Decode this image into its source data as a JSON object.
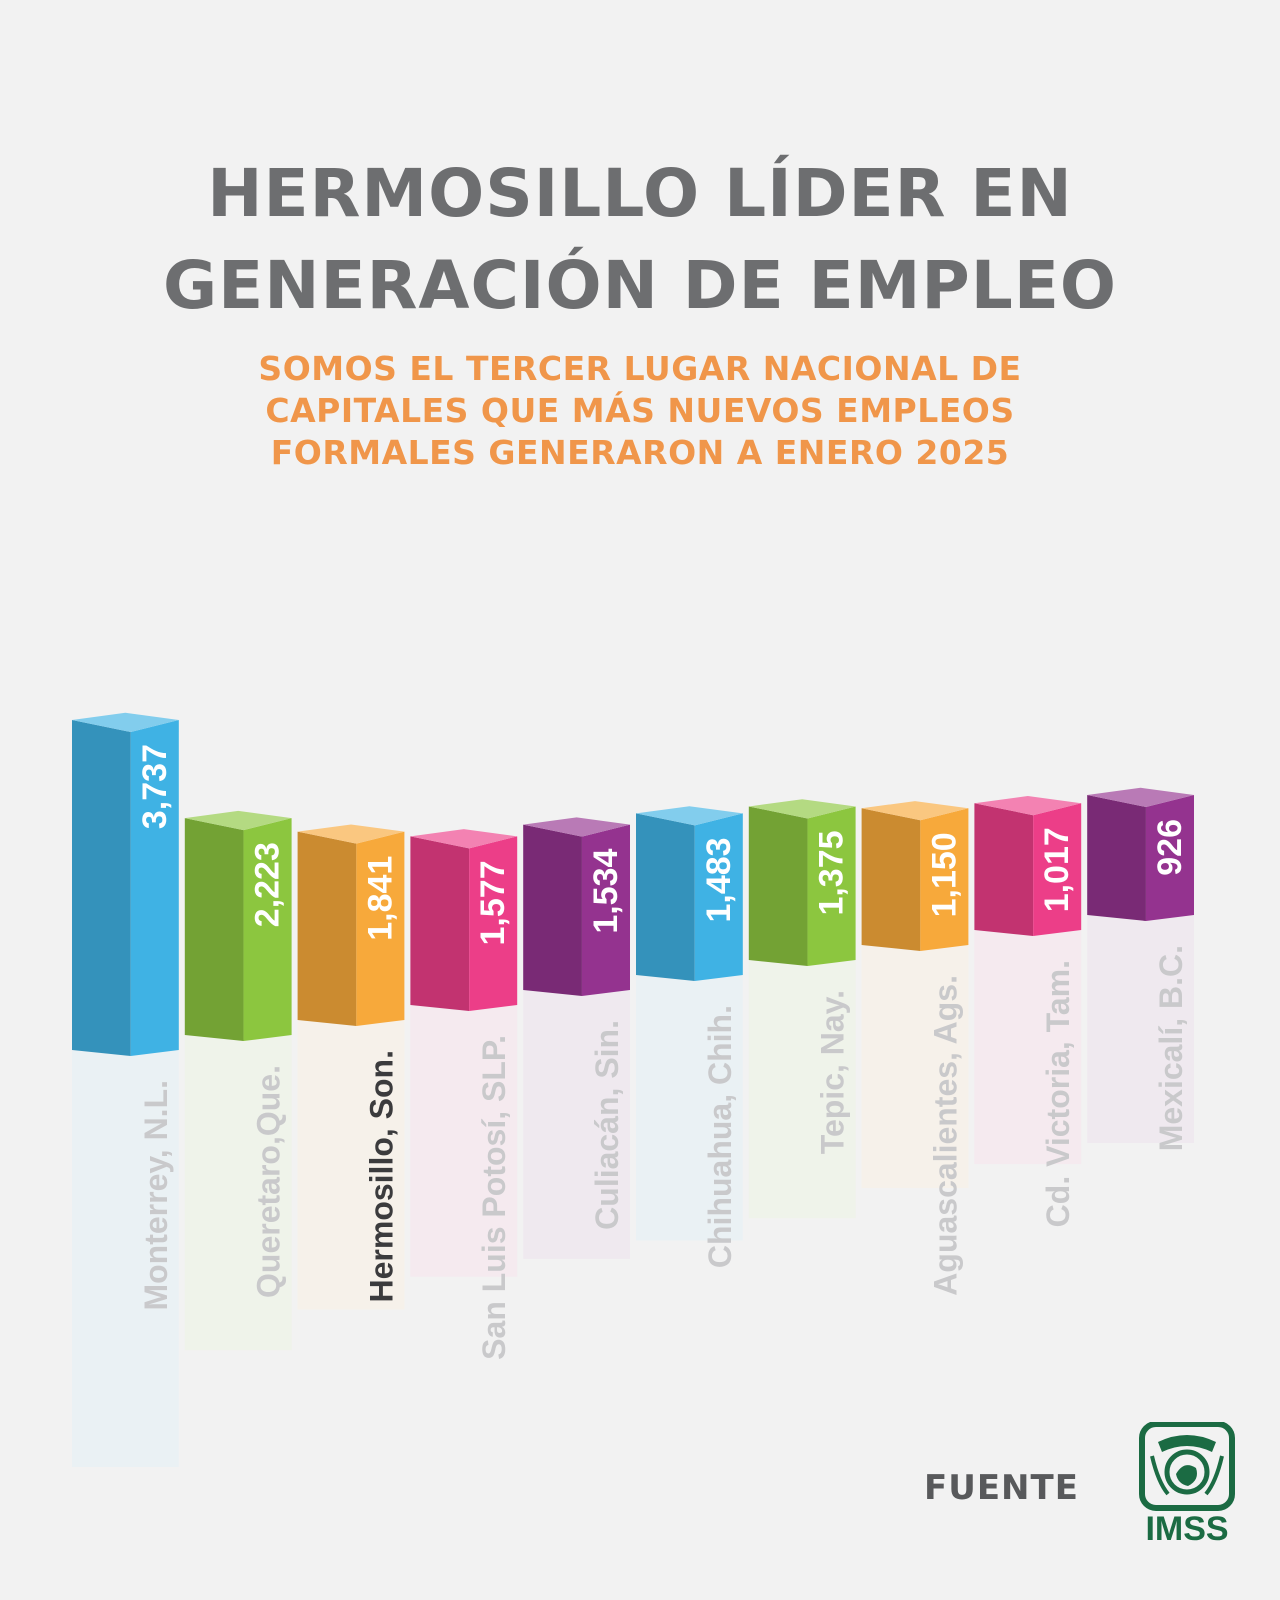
{
  "title_lines": [
    "HERMOSILLO LÍDER EN",
    "GENERACIÓN DE EMPLEO"
  ],
  "subtitle_lines": [
    "SOMOS EL TERCER LUGAR NACIONAL DE",
    "CAPITALES QUE MÁS NUEVOS EMPLEOS",
    "FORMALES GENERARON A ENERO 2025"
  ],
  "source_label": "FUENTE",
  "logo_text": "IMSS",
  "colors": {
    "title": "#6d6e70",
    "subtitle": "#f0964a",
    "logo": "#1b6b43",
    "highlight_label": "#3b3b3d",
    "normal_label": "#c9c9cb"
  },
  "chart_data": {
    "type": "bar",
    "title": "",
    "xlabel": "",
    "ylabel": "",
    "ylim": [
      0,
      3737
    ],
    "highlight": "Hermosillo, Son.",
    "categories": [
      "Monterrey, N.L.",
      "Queretaro,Que.",
      "Hermosillo, Son.",
      "San Luis Potosí, SLP.",
      "Culiacán, Sin.",
      "Chihuahua, Chih.",
      "Tepic, Nay.",
      "Aguascalientes, Ags.",
      "Cd. Victoria, Tam.",
      "Mexicalí, B.C."
    ],
    "values": [
      3737,
      2223,
      1841,
      1577,
      1534,
      1483,
      1375,
      1150,
      1017,
      926
    ],
    "value_labels": [
      "3,737",
      "2,223",
      "1,841",
      "1,577",
      "1,534",
      "1,483",
      "1,375",
      "1,150",
      "1,017",
      "926"
    ],
    "bar_colors": [
      "#3fb2e4",
      "#8cc63f",
      "#f7a93b",
      "#ec3e88",
      "#94338f",
      "#3fb2e4",
      "#8cc63f",
      "#f7a93b",
      "#ec3e88",
      "#94338f"
    ]
  }
}
